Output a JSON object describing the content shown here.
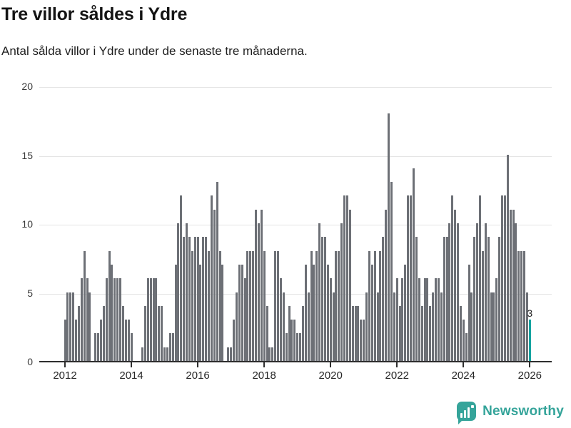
{
  "header": {
    "title_note": "bound from chart_data"
  },
  "chart_data": {
    "type": "bar",
    "title": "Tre villor såldes i Ydre",
    "subtitle": "Antal sålda villor i Ydre under de senaste tre månaderna.",
    "ylim": [
      0,
      20
    ],
    "yticks": [
      0,
      5,
      10,
      15,
      20
    ],
    "xticks": [
      "2012",
      "2014",
      "2016",
      "2018",
      "2020",
      "2022",
      "2024",
      "2026"
    ],
    "grid": "horizontal",
    "legend": "none",
    "bar_color": "#6d7076",
    "highlight_color": "#14a3a1",
    "start_month": "2012-01",
    "end_month": "2026-01",
    "series_by_year": [
      {
        "year": 2012,
        "values": [
          3,
          5,
          5,
          5,
          3,
          4,
          6,
          8,
          6,
          5,
          0,
          2
        ]
      },
      {
        "year": 2013,
        "values": [
          2,
          3,
          4,
          6,
          8,
          7,
          6,
          6,
          6,
          4,
          3,
          3
        ]
      },
      {
        "year": 2014,
        "values": [
          2,
          0,
          0,
          0,
          1,
          4,
          6,
          6,
          6,
          6,
          4,
          4
        ]
      },
      {
        "year": 2015,
        "values": [
          1,
          1,
          2,
          2,
          7,
          10,
          12,
          9,
          10,
          9,
          8,
          9
        ]
      },
      {
        "year": 2016,
        "values": [
          9,
          7,
          9,
          9,
          8,
          12,
          11,
          13,
          8,
          7,
          0,
          1
        ]
      },
      {
        "year": 2017,
        "values": [
          1,
          3,
          5,
          7,
          7,
          6,
          8,
          8,
          8,
          11,
          10,
          11
        ]
      },
      {
        "year": 2018,
        "values": [
          8,
          4,
          1,
          1,
          8,
          8,
          6,
          5,
          2,
          4,
          3,
          3
        ]
      },
      {
        "year": 2019,
        "values": [
          2,
          2,
          4,
          7,
          5,
          8,
          7,
          8,
          10,
          9,
          9,
          7
        ]
      },
      {
        "year": 2020,
        "values": [
          6,
          5,
          8,
          8,
          10,
          12,
          12,
          11,
          4,
          4,
          4,
          3
        ]
      },
      {
        "year": 2021,
        "values": [
          3,
          5,
          8,
          7,
          8,
          5,
          8,
          9,
          11,
          18,
          13,
          5
        ]
      },
      {
        "year": 2022,
        "values": [
          6,
          4,
          6,
          7,
          12,
          12,
          14,
          9,
          6,
          4,
          6,
          6
        ]
      },
      {
        "year": 2023,
        "values": [
          4,
          5,
          6,
          6,
          5,
          9,
          9,
          10,
          12,
          11,
          10,
          4
        ]
      },
      {
        "year": 2024,
        "values": [
          3,
          2,
          7,
          5,
          9,
          10,
          12,
          8,
          10,
          9,
          5,
          5
        ]
      },
      {
        "year": 2025,
        "values": [
          6,
          9,
          12,
          12,
          15,
          11,
          11,
          10,
          8,
          8,
          8,
          5
        ]
      },
      {
        "year": 2026,
        "values": [
          3
        ]
      }
    ],
    "highlight": {
      "month": "2026-01",
      "value": 3,
      "label": "3"
    }
  },
  "footer": {
    "brand": "Newsworthy",
    "brand_color": "#35a49a",
    "icon": "bar-chart-marker-icon"
  }
}
